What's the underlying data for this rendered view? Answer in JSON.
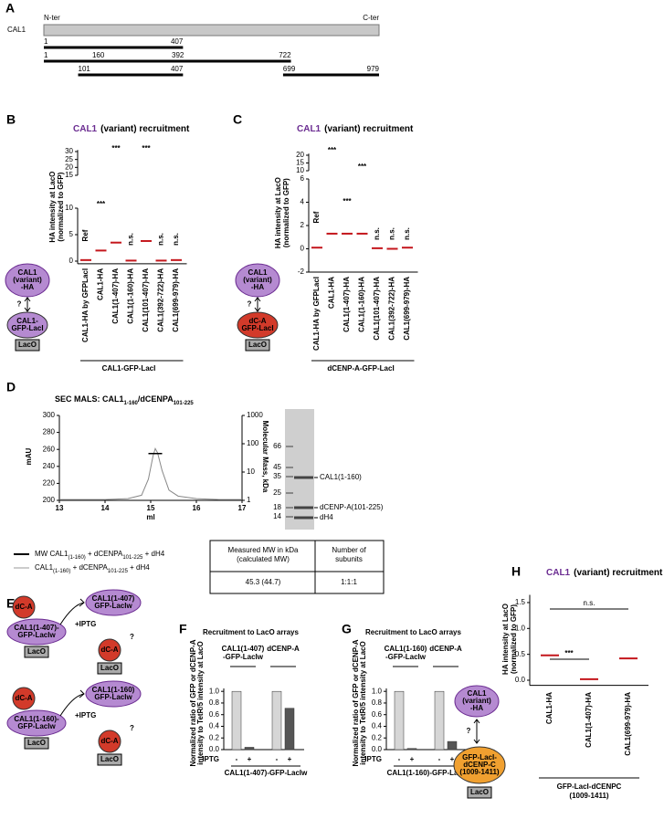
{
  "panel_a": {
    "letter": "A",
    "protein": "CAL1",
    "n_ter": "N-ter",
    "c_ter": "C-ter",
    "rows": [
      {
        "fragments": [
          [
            1,
            407
          ]
        ]
      },
      {
        "fragments": [
          [
            1,
            722
          ]
        ],
        "marks": [
          160,
          392
        ]
      },
      {
        "fragments": [
          [
            101,
            407
          ],
          [
            699,
            979
          ]
        ]
      }
    ]
  },
  "panel_b": {
    "letter": "B",
    "title": {
      "protein": "CAL1",
      "rest": "(variant) recruitment"
    },
    "y_label": [
      "HA intensity at LacO",
      "(normalized to GFP)"
    ],
    "ylim": [
      -0.5,
      31
    ],
    "yticks": [
      0,
      5,
      10,
      15,
      20,
      25,
      30
    ],
    "axis_break_after": 10,
    "categories": [
      "CAL1-HA by GFPLacI",
      "CAL1-HA",
      "CAL1(1-407)-HA",
      "CAL1(1-160)-HA",
      "CAL1(101-407)-HA",
      "CAL1(392-722)-HA",
      "CAL1(699-979)-HA"
    ],
    "means": [
      0.2,
      2.0,
      3.5,
      0.1,
      3.8,
      0.1,
      0.2
    ],
    "annotations": [
      "Ref",
      "***",
      "***",
      "n.s.",
      "***",
      "n.s.",
      "n.s."
    ],
    "x_group_label": "CAL1-GFP-LacI",
    "cartoon": {
      "top": [
        "CAL1",
        "(variant)",
        "-HA"
      ],
      "question": "?",
      "bottom": [
        "CAL1-",
        "GFP-LacI"
      ],
      "base": "LacO"
    }
  },
  "panel_c": {
    "letter": "C",
    "title": {
      "protein": "CAL1",
      "rest": "(variant) recruitment"
    },
    "y_label": [
      "HA intensity at LacO",
      "(normalized to GFP)"
    ],
    "ylim": [
      -2,
      21
    ],
    "yticks": [
      -2,
      0,
      2,
      4,
      6,
      10,
      15,
      20
    ],
    "axis_break_after": 6,
    "categories": [
      "CAL1-HA by GFPLacI",
      "CAL1-HA",
      "CAL1(1-407)-HA",
      "CAL1(1-160)-HA",
      "CAL1(101-407)-HA",
      "CAL1(392-722)-HA",
      "CAL1(699-979)-HA"
    ],
    "means": [
      0.1,
      1.3,
      1.3,
      1.3,
      0.05,
      0,
      0.1
    ],
    "annotations": [
      "Ref",
      "***",
      "***",
      "***",
      "n.s.",
      "n.s.",
      "n.s."
    ],
    "x_group_label": "dCENP-A-GFP-LacI",
    "cartoon": {
      "top": [
        "CAL1",
        "(variant)",
        "-HA"
      ],
      "question": "?",
      "bottom": [
        "dC-A",
        "GFP-LacI"
      ],
      "base": "LacO"
    }
  },
  "panel_d": {
    "letter": "D",
    "title_parts": [
      "SEC MALS:  CAL1",
      "1-160",
      "/dCENPA",
      "101-225"
    ],
    "x_label": "ml",
    "y_label": "mAU",
    "y2_label": "Molecular Mass, kDa",
    "x": [
      13,
      14,
      14.5,
      14.8,
      14.95,
      15.05,
      15.1,
      15.15,
      15.25,
      15.4,
      15.6,
      16,
      16.5,
      17
    ],
    "y": [
      201,
      201,
      202,
      206,
      225,
      252,
      261,
      256,
      235,
      212,
      205,
      202,
      201,
      201
    ],
    "xlim": [
      13,
      17
    ],
    "xticks": [
      13,
      14,
      15,
      16,
      17
    ],
    "ylim": [
      200,
      300
    ],
    "yticks": [
      200,
      220,
      240,
      260,
      280,
      300
    ],
    "y2lim": [
      1,
      1000
    ],
    "y2ticks": [
      1,
      10,
      100,
      1000
    ],
    "y2_log": true,
    "mw": {
      "x": [
        14.95,
        15.25
      ],
      "y": [
        45,
        45
      ]
    },
    "gel": {
      "markers": [
        66,
        45,
        35,
        25,
        18,
        14
      ],
      "bands": [
        "CAL1(1-160)",
        "dCENP-A(101-225)",
        "dH4"
      ]
    },
    "legend": [
      {
        "parts": [
          "MW CAL1",
          "(1-160)",
          " + dCENPA",
          "101-225",
          " + dH4"
        ],
        "color": "#000000"
      },
      {
        "parts": [
          "CAL1",
          "(1-160)",
          " + dCENPA",
          "101-225",
          " + dH4"
        ],
        "color": "#999999"
      }
    ],
    "table": {
      "columns": [
        [
          "Measured MW in kDa",
          "(calculated MW)"
        ],
        [
          "Number of",
          "subunits"
        ]
      ],
      "row": [
        "45.3 (44.7)",
        "1:1:1"
      ]
    }
  },
  "panel_e": {
    "letter": "E",
    "scenarios": [
      {
        "bound": "dC-A",
        "tether": [
          "CAL1(1-407)-",
          "GFP-LacIw"
        ],
        "base": "LacO",
        "treatment": "+IPTG",
        "released": [
          "CAL1(1-407)",
          "GFP-LacIw"
        ],
        "question": "?",
        "remaining": "dC-A",
        "remaining_base": "LacO"
      },
      {
        "bound": "dC-A",
        "tether": [
          "CAL1(1-160)-",
          "GFP-LacIw"
        ],
        "base": "LacO",
        "treatment": "+IPTG",
        "released": [
          "CAL1(1-160)",
          "GFP-LacIw"
        ],
        "question": "?",
        "remaining": "dC-A",
        "remaining_base": "LacO"
      }
    ]
  },
  "panel_f": {
    "letter": "F",
    "title": "Recruitment to LacO arrays",
    "y_label": [
      "Normalized ratio of GFP or dCENP-A",
      "intensity to TetR/5 intensity at LacO"
    ],
    "ylim": [
      0,
      1.05
    ],
    "yticks": [
      {
        "value": 0,
        "label": "0.0"
      },
      0.2,
      0.4,
      0.6,
      0.8,
      {
        "value": 1,
        "label": "1.0"
      }
    ],
    "groups": [
      {
        "name": [
          "CAL1(1-407)",
          "-GFP-LacIw"
        ],
        "color": "#6b2c91",
        "values": [
          1,
          0.04
        ]
      },
      {
        "name": [
          "dCENP-A"
        ],
        "color": "#c4161c",
        "values": [
          1,
          0.71
        ]
      }
    ],
    "bar_colors": [
      "#d6d6d6",
      "#555555"
    ],
    "x_label": "IPTG",
    "conditions": [
      "-",
      "+"
    ],
    "x_group_label": "CAL1(1-407)-GFP-LacIw"
  },
  "panel_g": {
    "letter": "G",
    "title": "Recruitment to LacO arrays",
    "y_label": [
      "Normalized ratio of GFP or dCENP-A",
      "intensity to TetR/5 intensity at LacO"
    ],
    "ylim": [
      0,
      1.05
    ],
    "yticks": [
      {
        "value": 0,
        "label": "0.0"
      },
      0.2,
      0.4,
      0.6,
      0.8,
      {
        "value": 1,
        "label": "1.0"
      }
    ],
    "groups": [
      {
        "name": [
          "CAL1(1-160)",
          "-GFP-LacIw"
        ],
        "color": "#6b2c91",
        "values": [
          1,
          0.02
        ]
      },
      {
        "name": [
          "dCENP-A"
        ],
        "color": "#c4161c",
        "values": [
          1,
          0.14
        ]
      }
    ],
    "bar_colors": [
      "#d6d6d6",
      "#555555"
    ],
    "x_label": "IPTG",
    "conditions": [
      "-",
      "+"
    ],
    "x_group_label": "CAL1(1-160)-GFP-LacIw"
  },
  "panel_h": {
    "letter": "H",
    "title": {
      "protein": "CAL1",
      "rest": "(variant) recruitment"
    },
    "y_label": [
      "HA intensity at LacO",
      "(normalized to GFP)"
    ],
    "ylim": [
      -0.1,
      1.65
    ],
    "yticks": [
      {
        "value": 0,
        "label": "0.0"
      },
      0.5,
      {
        "value": 1,
        "label": "1.0"
      },
      1.5
    ],
    "categories": [
      "CAL1-HA",
      "CAL1(1-407)-HA",
      "CAL1(699-979)-HA"
    ],
    "means": [
      0.48,
      0.02,
      0.42
    ],
    "comparisons": [
      "***",
      "n.s."
    ],
    "x_group_label": [
      "GFP-LacI-dCENPC",
      "(1009-1411)"
    ],
    "cartoon": {
      "top": [
        "CAL1",
        "(variant)",
        "-HA"
      ],
      "question": "?",
      "bottom": [
        "GFP-LacI-",
        "dCENP-C",
        "(1009-1411)"
      ],
      "base": "LacO"
    }
  }
}
